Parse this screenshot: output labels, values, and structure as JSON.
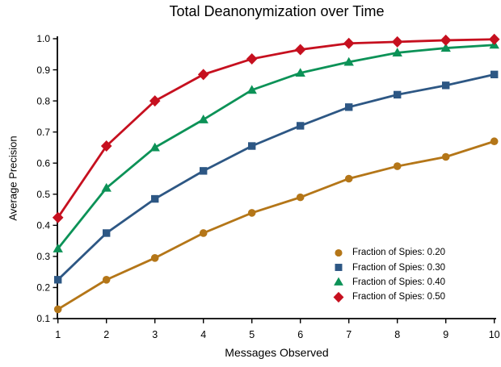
{
  "chart_data": {
    "type": "line",
    "title": "Total Deanonymization over Time",
    "xlabel": "Messages Observed",
    "ylabel": "Average Precision",
    "x": [
      1,
      2,
      3,
      4,
      5,
      6,
      7,
      8,
      9,
      10
    ],
    "xlim": [
      1,
      10
    ],
    "ylim": [
      0.1,
      1.0
    ],
    "xtick_labels": [
      "1",
      "2",
      "3",
      "4",
      "5",
      "6",
      "7",
      "8",
      "9",
      "10"
    ],
    "ytick_labels": [
      "0.1",
      "0.2",
      "0.3",
      "0.4",
      "0.5",
      "0.6",
      "0.7",
      "0.8",
      "0.9",
      "1.0"
    ],
    "grid": false,
    "legend_position": "lower right",
    "legend_frame": false,
    "axis_color": "#000000",
    "series": [
      {
        "name": "Fraction of Spies: 0.20",
        "marker": "circle",
        "color": "#b47618",
        "values": [
          0.13,
          0.225,
          0.295,
          0.375,
          0.44,
          0.49,
          0.55,
          0.59,
          0.62,
          0.67
        ]
      },
      {
        "name": "Fraction of Spies: 0.30",
        "marker": "square",
        "color": "#2d5784",
        "values": [
          0.225,
          0.375,
          0.485,
          0.575,
          0.655,
          0.72,
          0.78,
          0.82,
          0.85,
          0.885
        ]
      },
      {
        "name": "Fraction of Spies: 0.40",
        "marker": "triangle",
        "color": "#0c9257",
        "values": [
          0.325,
          0.52,
          0.65,
          0.74,
          0.835,
          0.89,
          0.925,
          0.955,
          0.97,
          0.98
        ]
      },
      {
        "name": "Fraction of Spies: 0.50",
        "marker": "diamond",
        "color": "#c6101f",
        "values": [
          0.425,
          0.655,
          0.8,
          0.885,
          0.935,
          0.965,
          0.985,
          0.99,
          0.995,
          0.998
        ]
      }
    ]
  }
}
